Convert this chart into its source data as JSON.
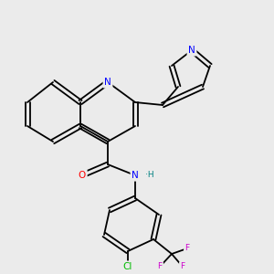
{
  "background_color": "#ebebeb",
  "atom_colors": {
    "C": "#000000",
    "N": "#0000ff",
    "O": "#ff0000",
    "F": "#cc00cc",
    "Cl": "#00bb00",
    "H": "#008080"
  },
  "figsize": [
    3.0,
    3.0
  ],
  "dpi": 100,
  "lw": 1.3,
  "fontsize": 7.5
}
